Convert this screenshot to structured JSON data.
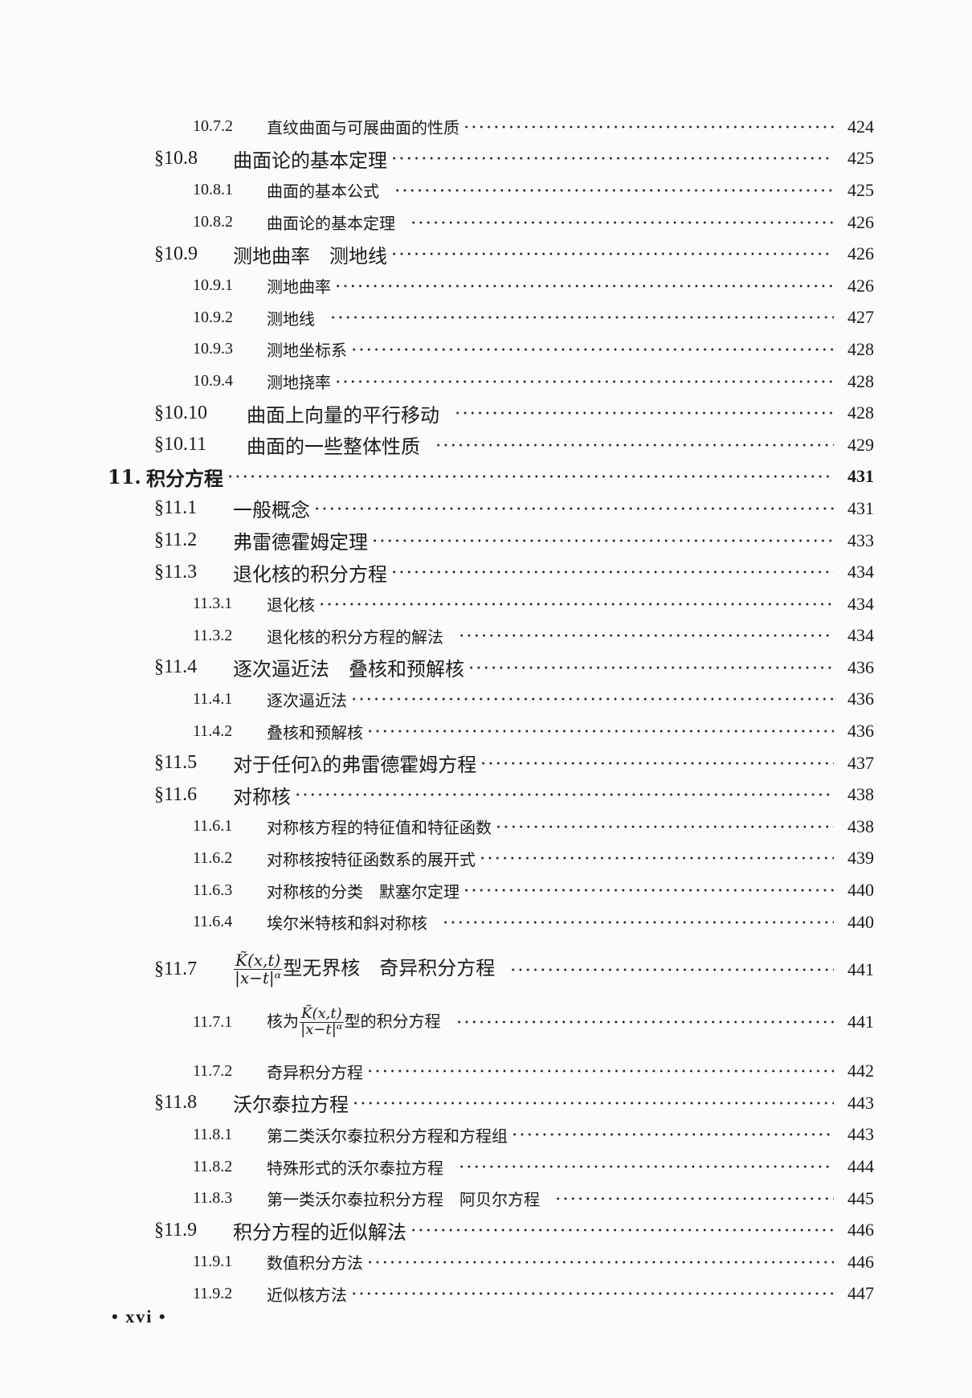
{
  "toc": [
    {
      "level": 2,
      "num": "10.7.2",
      "title": "直纹曲面与可展曲面的性质",
      "page": "424"
    },
    {
      "level": 1,
      "num": "§10.8",
      "title": "曲面论的基本定理",
      "page": "425"
    },
    {
      "level": 2,
      "num": "10.8.1",
      "title": "曲面的基本公式",
      "page": "425",
      "gap": true
    },
    {
      "level": 2,
      "num": "10.8.2",
      "title": "曲面论的基本定理",
      "page": "426",
      "gap": true
    },
    {
      "level": 1,
      "num": "§10.9",
      "title": "测地曲率　测地线",
      "page": "426"
    },
    {
      "level": 2,
      "num": "10.9.1",
      "title": "测地曲率",
      "page": "426"
    },
    {
      "level": 2,
      "num": "10.9.2",
      "title": "测地线",
      "page": "427",
      "gap": true
    },
    {
      "level": 2,
      "num": "10.9.3",
      "title": "测地坐标系",
      "page": "428"
    },
    {
      "level": 2,
      "num": "10.9.4",
      "title": "测地挠率",
      "page": "428"
    },
    {
      "level": 1,
      "num": "§10.10",
      "title": "曲面上向量的平行移动",
      "page": "428",
      "gap": true,
      "wide": true
    },
    {
      "level": 1,
      "num": "§10.11",
      "title": "曲面的一些整体性质",
      "page": "429",
      "gap": true,
      "wide": true
    },
    {
      "level": 0,
      "num": "11.",
      "title": "积分方程",
      "page": "431"
    },
    {
      "level": 1,
      "num": "§11.1",
      "title": "一般概念",
      "page": "431"
    },
    {
      "level": 1,
      "num": "§11.2",
      "title": "弗雷德霍姆定理",
      "page": "433"
    },
    {
      "level": 1,
      "num": "§11.3",
      "title": "退化核的积分方程",
      "page": "434"
    },
    {
      "level": 2,
      "num": "11.3.1",
      "title": "退化核",
      "page": "434"
    },
    {
      "level": 2,
      "num": "11.3.2",
      "title": "退化核的积分方程的解法",
      "page": "434",
      "gap": true
    },
    {
      "level": 1,
      "num": "§11.4",
      "title": "逐次逼近法　叠核和预解核",
      "page": "436"
    },
    {
      "level": 2,
      "num": "11.4.1",
      "title": "逐次逼近法",
      "page": "436"
    },
    {
      "level": 2,
      "num": "11.4.2",
      "title": "叠核和预解核",
      "page": "436"
    },
    {
      "level": 1,
      "num": "§11.5",
      "title": "对于任何λ的弗雷德霍姆方程",
      "page": "437"
    },
    {
      "level": 1,
      "num": "§11.6",
      "title": "对称核",
      "page": "438"
    },
    {
      "level": 2,
      "num": "11.6.1",
      "title": "对称核方程的特征值和特征函数",
      "page": "438"
    },
    {
      "level": 2,
      "num": "11.6.2",
      "title": "对称核按特征函数系的展开式",
      "page": "439"
    },
    {
      "level": 2,
      "num": "11.6.3",
      "title": "对称核的分类　默塞尔定理",
      "page": "440"
    },
    {
      "level": 2,
      "num": "11.6.4",
      "title": "埃尔米特核和斜对称核",
      "page": "440",
      "gap": true
    },
    {
      "level": 1,
      "num": "§11.7",
      "prefix": "",
      "frac_num": "K̃(x,t)",
      "frac_den": "|x−t|ᵅ",
      "title": "型无界核　奇异积分方程",
      "page": "441",
      "gap": true,
      "cls": "h117"
    },
    {
      "level": 2,
      "num": "11.7.1",
      "prefix": "核为",
      "frac_num": "K̃(x,t)",
      "frac_den": "|x−t|ᵅ",
      "title": "型的积分方程",
      "page": "441",
      "gap": true,
      "cls": "h1171"
    },
    {
      "level": 2,
      "num": "11.7.2",
      "title": "奇异积分方程",
      "page": "442",
      "cls": "h1172"
    },
    {
      "level": 1,
      "num": "§11.8",
      "title": "沃尔泰拉方程",
      "page": "443"
    },
    {
      "level": 2,
      "num": "11.8.1",
      "title": "第二类沃尔泰拉积分方程和方程组",
      "page": "443"
    },
    {
      "level": 2,
      "num": "11.8.2",
      "title": "特殊形式的沃尔泰拉方程",
      "page": "444",
      "gap": true
    },
    {
      "level": 2,
      "num": "11.8.3",
      "title": "第一类沃尔泰拉积分方程　阿贝尔方程",
      "page": "445",
      "gap": true
    },
    {
      "level": 1,
      "num": "§11.9",
      "title": "积分方程的近似解法",
      "page": "446"
    },
    {
      "level": 2,
      "num": "11.9.1",
      "title": "数值积分方法",
      "page": "446"
    },
    {
      "level": 2,
      "num": "11.9.2",
      "title": "近似核方法",
      "page": "447"
    }
  ],
  "footer": {
    "page_label": "• xvi •"
  }
}
